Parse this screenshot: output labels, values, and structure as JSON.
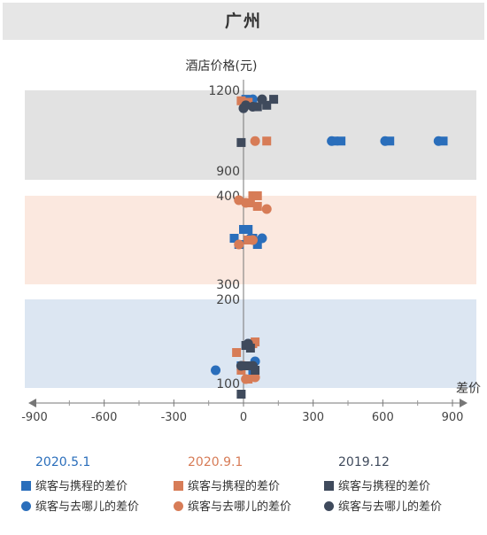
{
  "title": "广州",
  "colors": {
    "blue": "#2a6ebb",
    "orange": "#d77c57",
    "navy": "#3f4a5c",
    "band_top": "#e2e2e2",
    "band_mid": "#fbe8df",
    "band_low": "#dce6f2"
  },
  "chart_data": {
    "type": "scatter",
    "title": "广州",
    "xlabel": "差价",
    "ylabel": "酒店价格(元)",
    "xlim": [
      -900,
      900
    ],
    "x_ticks": [
      "-900",
      "-600",
      "-300",
      "0",
      "300",
      "600",
      "900"
    ],
    "y_axis_note": "broken axis, three price bands",
    "y_ticks": [
      "1200",
      "900",
      "400",
      "300",
      "200",
      "100"
    ],
    "bands": [
      {
        "range": [
          900,
          1200
        ],
        "color": "#e2e2e2"
      },
      {
        "range": [
          300,
          400
        ],
        "color": "#fbe8df"
      },
      {
        "range": [
          100,
          200
        ],
        "color": "#dce6f2"
      }
    ],
    "groups": [
      "2020.5.1",
      "2020.9.1",
      "2019.12"
    ],
    "group_colors": [
      "#2a6ebb",
      "#d77c57",
      "#3f4a5c"
    ],
    "series_labels": [
      "缤客与携程的差价",
      "缤客与去哪儿的差价"
    ],
    "series": [
      {
        "group": "2020.5.1",
        "name": "缤客与携程的差价",
        "marker": "square",
        "color": "#2a6ebb",
        "points": [
          [
            10,
            1170
          ],
          [
            390,
            1030
          ],
          [
            420,
            1030
          ],
          [
            630,
            1030
          ],
          [
            860,
            1030
          ],
          [
            0,
            362
          ],
          [
            20,
            362
          ],
          [
            -40,
            352
          ],
          [
            40,
            352
          ],
          [
            -20,
            345
          ],
          [
            60,
            345
          ],
          [
            -10,
            125
          ],
          [
            40,
            118
          ]
        ]
      },
      {
        "group": "2020.5.1",
        "name": "缤客与去哪儿的差价",
        "marker": "circle",
        "color": "#2a6ebb",
        "points": [
          [
            40,
            1170
          ],
          [
            380,
            1030
          ],
          [
            610,
            1030
          ],
          [
            840,
            1030
          ],
          [
            80,
            352
          ],
          [
            30,
            352
          ],
          [
            -120,
            120
          ],
          [
            20,
            150
          ],
          [
            50,
            130
          ]
        ]
      },
      {
        "group": "2020.9.1",
        "name": "缤客与携程的差价",
        "marker": "square",
        "color": "#d77c57",
        "points": [
          [
            -10,
            1165
          ],
          [
            100,
            1030
          ],
          [
            20,
            1160
          ],
          [
            40,
            400
          ],
          [
            60,
            400
          ],
          [
            30,
            392
          ],
          [
            60,
            388
          ],
          [
            20,
            350
          ],
          [
            -30,
            140
          ],
          [
            40,
            150
          ],
          [
            50,
            152
          ],
          [
            20,
            110
          ],
          [
            -10,
            120
          ]
        ]
      },
      {
        "group": "2020.9.1",
        "name": "缤客与去哪儿的差价",
        "marker": "circle",
        "color": "#d77c57",
        "points": [
          [
            50,
            1030
          ],
          [
            -20,
            395
          ],
          [
            10,
            392
          ],
          [
            100,
            385
          ],
          [
            40,
            350
          ],
          [
            -20,
            345
          ],
          [
            50,
            112
          ],
          [
            10,
            110
          ],
          [
            0,
            125
          ],
          [
            40,
            150
          ]
        ]
      },
      {
        "group": "2019.12",
        "name": "缤客与携程的差价",
        "marker": "square",
        "color": "#3f4a5c",
        "points": [
          [
            130,
            1170
          ],
          [
            100,
            1150
          ],
          [
            60,
            1145
          ],
          [
            -10,
            1025
          ],
          [
            -10,
            93
          ],
          [
            10,
            125
          ],
          [
            50,
            120
          ],
          [
            10,
            148
          ],
          [
            30,
            145
          ]
        ]
      },
      {
        "group": "2019.12",
        "name": "缤客与去哪儿的差价",
        "marker": "circle",
        "color": "#3f4a5c",
        "points": [
          [
            80,
            1170
          ],
          [
            10,
            1150
          ],
          [
            40,
            1145
          ],
          [
            0,
            1140
          ],
          [
            -10,
            125
          ],
          [
            40,
            125
          ],
          [
            20,
            150
          ]
        ]
      }
    ]
  },
  "legend": {
    "groups": [
      {
        "title": "2020.5.1",
        "color": "#2a6ebb",
        "items": [
          "缤客与携程的差价",
          "缤客与去哪儿的差价"
        ]
      },
      {
        "title": "2020.9.1",
        "color": "#d77c57",
        "items": [
          "缤客与携程的差价",
          "缤客与去哪儿的差价"
        ]
      },
      {
        "title": "2019.12",
        "color": "#3f4a5c",
        "items": [
          "缤客与携程的差价",
          "缤客与去哪儿的差价"
        ]
      }
    ]
  }
}
